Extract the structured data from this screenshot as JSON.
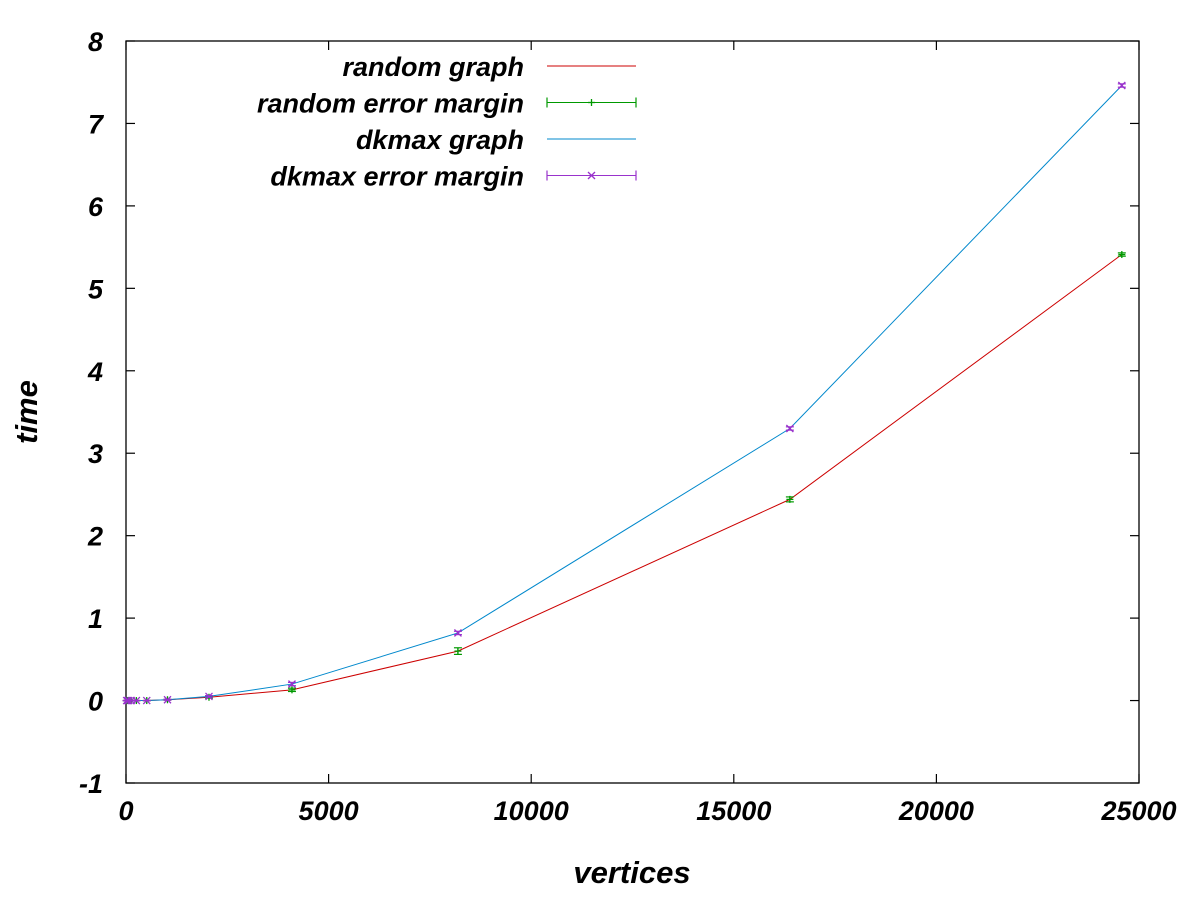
{
  "chart_data": {
    "type": "line",
    "xlabel": "vertices",
    "ylabel": "time",
    "xlim": [
      0,
      25000
    ],
    "ylim": [
      -1,
      8
    ],
    "x_ticks": [
      0,
      5000,
      10000,
      15000,
      20000,
      25000
    ],
    "y_ticks": [
      -1,
      0,
      1,
      2,
      3,
      4,
      5,
      6,
      7,
      8
    ],
    "x_tick_labels": [
      "0",
      "5000",
      "10000",
      "15000",
      "20000",
      "25000"
    ],
    "y_tick_labels": [
      "-1",
      "0",
      "1",
      "2",
      "3",
      "4",
      "5",
      "6",
      "7",
      "8"
    ],
    "grid": false,
    "legend_position": "top-left",
    "x": [
      16,
      32,
      64,
      128,
      256,
      512,
      1024,
      2048,
      4096,
      8192,
      16384,
      24576
    ],
    "series": [
      {
        "name": "random graph",
        "error_name": "random error margin",
        "line_color": "#cc0000",
        "marker_color": "#009900",
        "values": [
          0,
          0,
          0,
          0,
          0,
          0,
          0.01,
          0.04,
          0.13,
          0.6,
          2.44,
          5.41
        ],
        "errors": [
          0,
          0,
          0,
          0,
          0,
          0,
          0.005,
          0.01,
          0.02,
          0.04,
          0.03,
          0.02
        ]
      },
      {
        "name": "dkmax graph",
        "error_name": "dkmax error margin",
        "line_color": "#0088cc",
        "marker_color": "#9933cc",
        "values": [
          0,
          0,
          0,
          0,
          0,
          0,
          0.01,
          0.05,
          0.2,
          0.82,
          3.3,
          7.46
        ],
        "errors": [
          0,
          0,
          0,
          0,
          0,
          0,
          0.005,
          0.01,
          0.02,
          0.02,
          0.02,
          0.02
        ]
      }
    ]
  }
}
